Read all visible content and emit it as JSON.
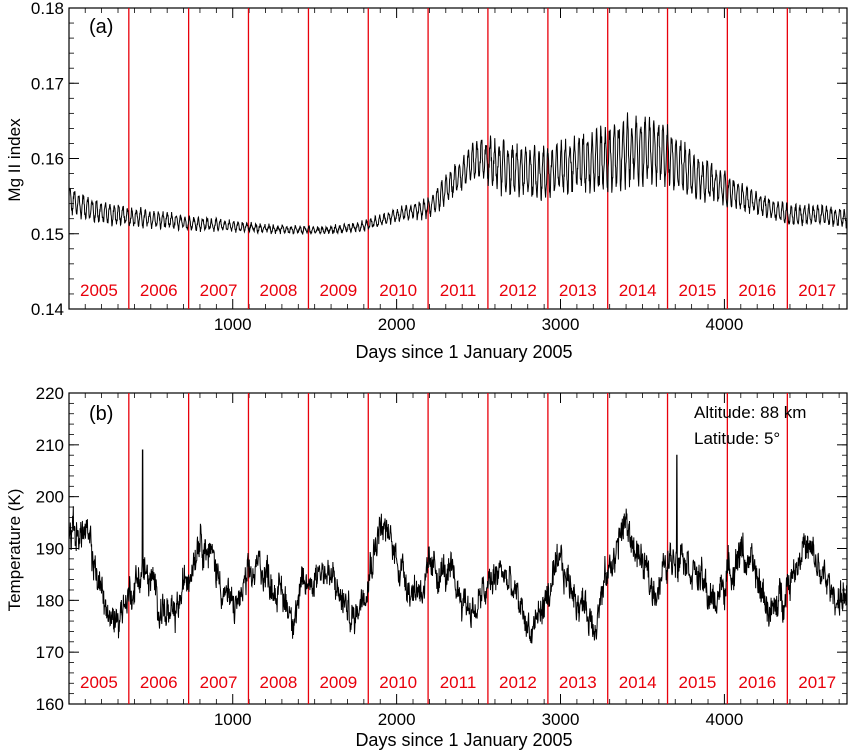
{
  "chart_data": [
    {
      "type": "line",
      "panel_label": "(a)",
      "xlabel": "Days since 1 January 2005",
      "ylabel": "Mg II index",
      "xlim": [
        1,
        4748
      ],
      "ylim": [
        0.14,
        0.18
      ],
      "xticks": [
        1000,
        2000,
        3000,
        4000
      ],
      "yticks": [
        0.14,
        0.15,
        0.16,
        0.17,
        0.18
      ],
      "ytick_labels": [
        "0.14",
        "0.15",
        "0.16",
        "0.17",
        "0.18"
      ],
      "year_boundaries": [
        366,
        731,
        1096,
        1462,
        1827,
        2192,
        2557,
        2923,
        3288,
        3653,
        4018,
        4384
      ],
      "year_labels": [
        "2005",
        "2006",
        "2007",
        "2008",
        "2009",
        "2010",
        "2011",
        "2012",
        "2013",
        "2014",
        "2015",
        "2016",
        "2017"
      ],
      "series": [
        {
          "color": "#000000",
          "baseline": {
            "x": [
              1,
              100,
              200,
              400,
              700,
              1000,
              1200,
              1400,
              1600,
              1800,
              2000,
              2200,
              2350,
              2500,
              2700,
              2900,
              3100,
              3300,
              3450,
              3550,
              3650,
              3800,
              4000,
              4200,
              4400,
              4600,
              4748
            ],
            "y": [
              0.1545,
              0.1535,
              0.1528,
              0.1522,
              0.1515,
              0.151,
              0.1507,
              0.1505,
              0.1505,
              0.151,
              0.1525,
              0.1535,
              0.157,
              0.16,
              0.1585,
              0.158,
              0.1595,
              0.16,
              0.1612,
              0.161,
              0.1605,
              0.158,
              0.156,
              0.154,
              0.1525,
              0.1525,
              0.152
            ]
          },
          "rotation_amplitude": {
            "x": [
              1,
              400,
              1200,
              1700,
              2100,
              2400,
              2600,
              3000,
              3400,
              3600,
              3800,
              4200,
              4748
            ],
            "y": [
              0.0015,
              0.001,
              0.0004,
              0.0004,
              0.0008,
              0.0018,
              0.003,
              0.0028,
              0.004,
              0.0035,
              0.0025,
              0.0012,
              0.001
            ]
          }
        }
      ]
    },
    {
      "type": "line",
      "panel_label": "(b)",
      "xlabel": "Days since 1 January 2005",
      "ylabel": "Temperature (K)",
      "xlim": [
        1,
        4748
      ],
      "ylim": [
        160,
        220
      ],
      "xticks": [
        1000,
        2000,
        3000,
        4000
      ],
      "yticks": [
        160,
        170,
        180,
        190,
        200,
        210,
        220
      ],
      "ytick_labels": [
        "160",
        "170",
        "180",
        "190",
        "200",
        "210",
        "220"
      ],
      "year_boundaries": [
        366,
        731,
        1096,
        1462,
        1827,
        2192,
        2557,
        2923,
        3288,
        3653,
        4018,
        4384
      ],
      "year_labels": [
        "2005",
        "2006",
        "2007",
        "2008",
        "2009",
        "2010",
        "2011",
        "2012",
        "2013",
        "2014",
        "2015",
        "2016",
        "2017"
      ],
      "annotations": [
        "Altitude: 88 km",
        "Latitude: 5°"
      ],
      "series": [
        {
          "color": "#000000",
          "mean": 182.5,
          "seasonal_peaks": {
            "x": [
              100,
              260,
              450,
              640,
              800,
              1000,
              1170,
              1360,
              1540,
              1740,
              1900,
              2100,
              2270,
              2470,
              2640,
              2820,
              3000,
              3200,
              3390,
              3560,
              3740,
              3930,
              4100,
              4300,
              4480,
              4660
            ],
            "y": [
              193,
              175,
              186,
              175,
              194,
              178,
              187,
              178,
              187,
              176,
              195,
              182,
              186,
              178,
              186,
              174,
              186,
              176,
              195,
              182,
              191,
              179,
              190,
              177,
              191,
              181
            ]
          },
          "spikes": [
            {
              "x": 450,
              "y": 209
            },
            {
              "x": 3710,
              "y": 208
            }
          ]
        }
      ]
    }
  ]
}
